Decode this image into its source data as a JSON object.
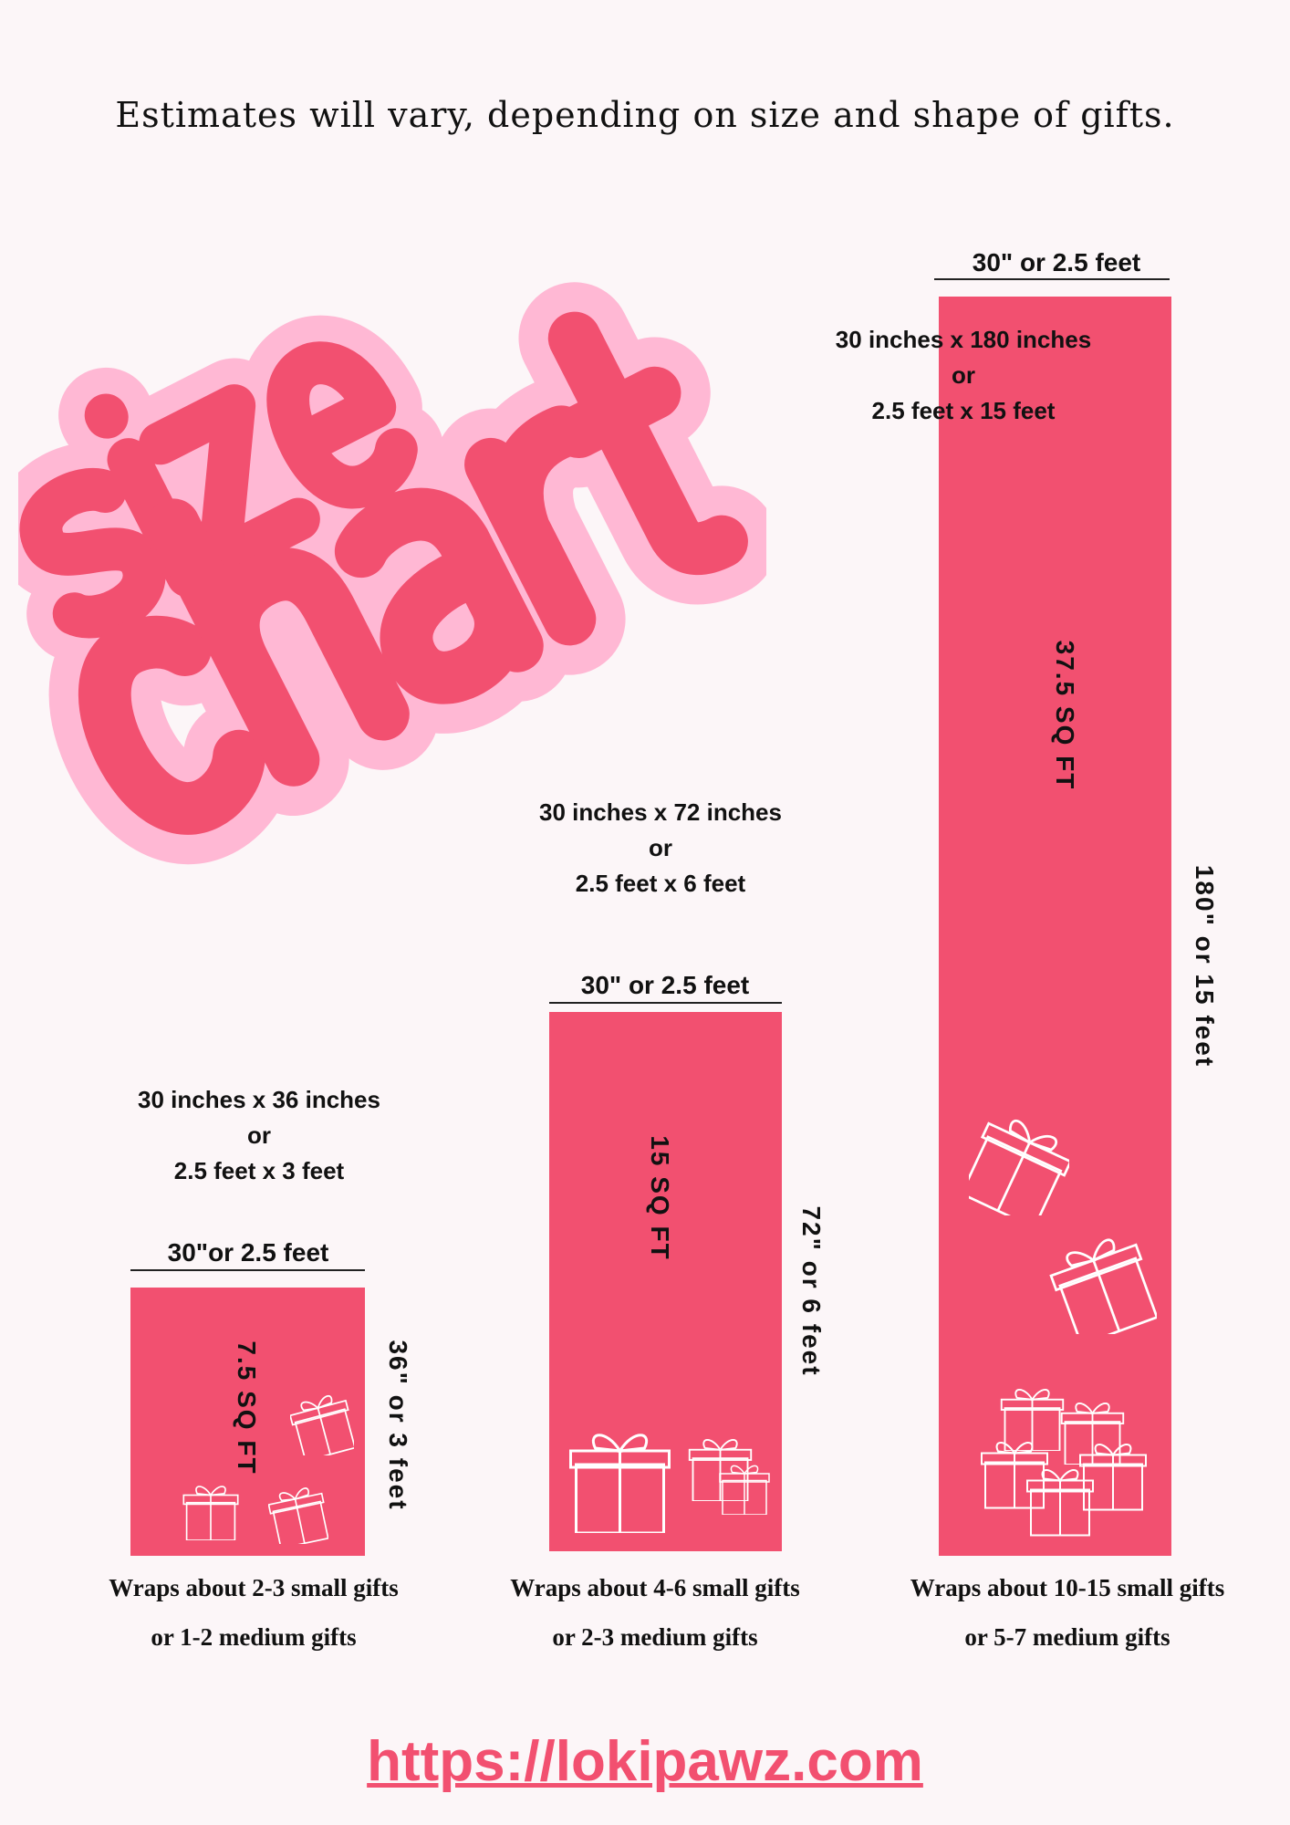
{
  "subtitle": "Estimates will vary, depending on size and shape of gifts.",
  "logo": {
    "line1": "size",
    "line2": "chart",
    "colors": {
      "fill": "#f25070",
      "outline": "#ffb8d4"
    }
  },
  "colors": {
    "background": "#fcf6f8",
    "bar": "#f25070",
    "url": "#f25070"
  },
  "sizes": [
    {
      "width_label": "30\"or 2.5 feet",
      "dims": [
        "30 inches x 36 inches",
        "or",
        "2.5 feet x 3 feet"
      ],
      "area": "7.5 SQ FT",
      "height_label": "36\" or 3 feet",
      "caption": [
        "Wraps about 2-3 small gifts",
        "or 1-2 medium gifts"
      ]
    },
    {
      "width_label": "30\" or 2.5 feet",
      "dims": [
        "30 inches x 72 inches",
        "or",
        "2.5 feet x 6 feet"
      ],
      "area": "15 SQ FT",
      "height_label": "72\" or 6 feet",
      "caption": [
        "Wraps about 4-6 small gifts",
        "or 2-3 medium gifts"
      ]
    },
    {
      "width_label": "30\" or 2.5 feet",
      "dims": [
        "30 inches x 180 inches",
        "or",
        "2.5 feet x 15 feet"
      ],
      "area": "37.5 SQ FT",
      "height_label": "180\" or 15 feet",
      "caption": [
        "Wraps about 10-15 small gifts",
        "or 5-7 medium gifts"
      ]
    }
  ],
  "url": "https://lokipawz.com"
}
